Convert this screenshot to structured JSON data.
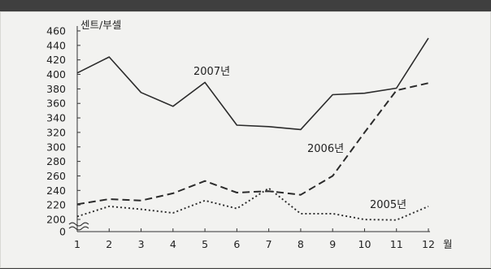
{
  "chart_data": {
    "type": "line",
    "ylabel": "센트/부셀",
    "xlabel": "월",
    "x": [
      1,
      2,
      3,
      4,
      5,
      6,
      7,
      8,
      9,
      10,
      11,
      12
    ],
    "y_ticks": [
      0,
      200,
      220,
      240,
      260,
      280,
      300,
      320,
      340,
      360,
      380,
      400,
      420,
      440,
      460
    ],
    "y_axis_break": true,
    "ylim": [
      0,
      460
    ],
    "grid": false,
    "legend": "none",
    "series": [
      {
        "name": "2007년",
        "style": "solid",
        "values": [
          402,
          424,
          375,
          356,
          389,
          330,
          328,
          324,
          372,
          374,
          381,
          450
        ]
      },
      {
        "name": "2006년",
        "style": "dashed",
        "values": [
          221,
          228,
          226,
          236,
          253,
          237,
          239,
          234,
          260,
          320,
          378,
          388
        ]
      },
      {
        "name": "2005년",
        "style": "dotted",
        "values": [
          204,
          218,
          214,
          209,
          226,
          215,
          243,
          208,
          208,
          199,
          191,
          218
        ]
      }
    ]
  },
  "colors": {
    "background": "#3f3f3f",
    "panel": "#f2f2f0",
    "line": "#2b2b2b",
    "text": "#222222"
  }
}
